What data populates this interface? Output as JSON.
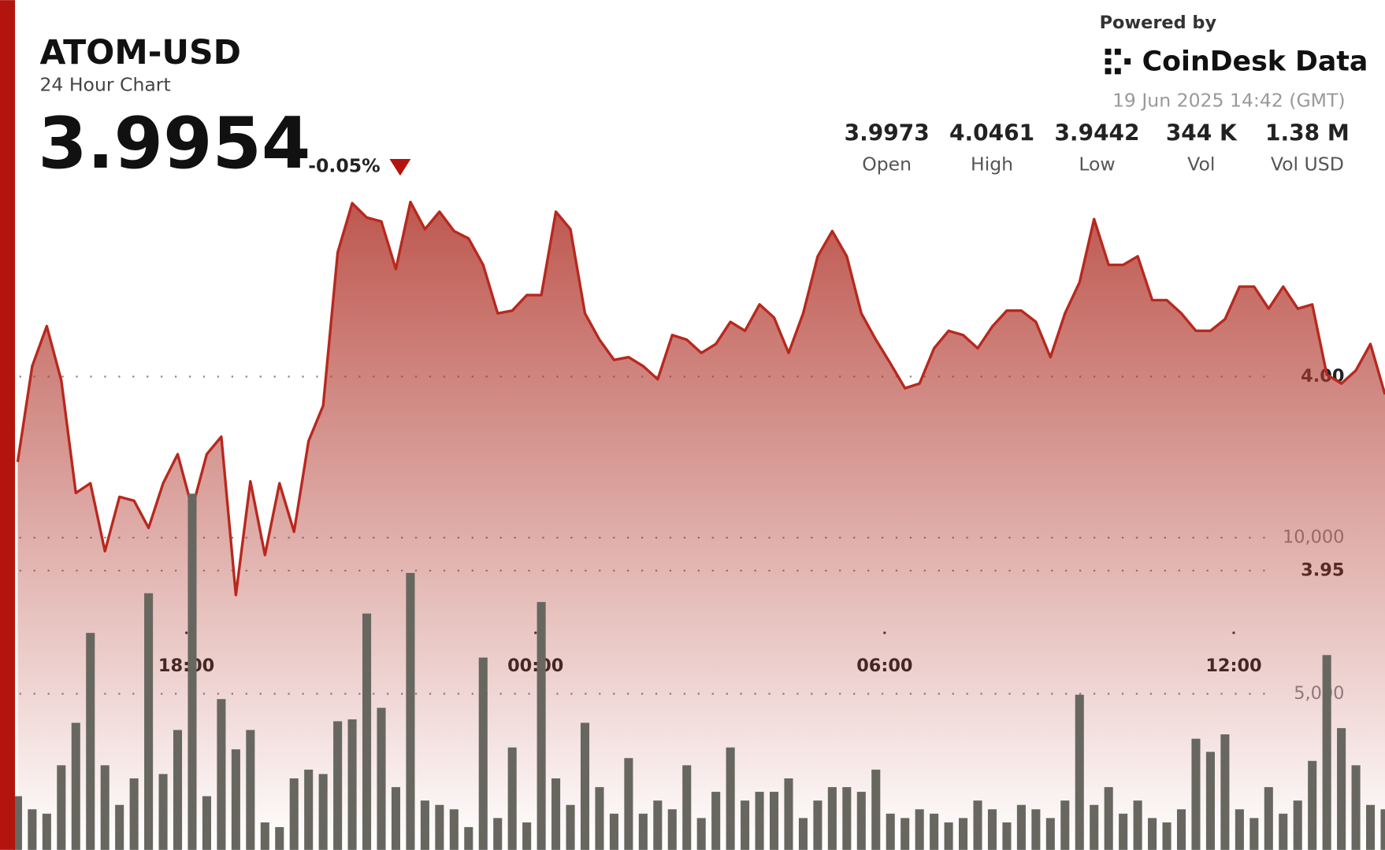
{
  "header": {
    "symbol": "ATOM-USD",
    "subtitle": "24 Hour Chart",
    "price": "3.9954",
    "change": "-0.05%",
    "powered_by": "Powered by",
    "brand": "CoinDesk Data",
    "timestamp": "19 Jun 2025 14:42 (GMT)",
    "stats": [
      {
        "value": "3.9973",
        "label": "Open"
      },
      {
        "value": "4.0461",
        "label": "High"
      },
      {
        "value": "3.9442",
        "label": "Low"
      },
      {
        "value": "344 K",
        "label": "Vol"
      },
      {
        "value": "1.38 M",
        "label": "Vol USD"
      }
    ]
  },
  "chart_data": {
    "type": "area",
    "x": [
      15.1,
      15.35,
      15.6,
      15.85,
      16.1,
      16.35,
      16.6,
      16.85,
      17.1,
      17.35,
      17.6,
      17.85,
      18.1,
      18.35,
      18.6,
      18.85,
      19.1,
      19.35,
      19.6,
      19.85,
      20.1,
      20.35,
      20.6,
      20.85,
      21.1,
      21.35,
      21.6,
      21.85,
      22.1,
      22.35,
      22.6,
      22.85,
      23.1,
      23.35,
      23.6,
      23.85,
      24.1,
      24.35,
      24.6,
      24.85,
      25.1,
      25.35,
      25.6,
      25.85,
      26.1,
      26.35,
      26.6,
      26.85,
      27.1,
      27.35,
      27.6,
      27.85,
      28.1,
      28.35,
      28.6,
      28.85,
      29.1,
      29.35,
      29.6,
      29.85,
      30.1,
      30.35,
      30.6,
      30.85,
      31.1,
      31.35,
      31.6,
      31.85,
      32.1,
      32.35,
      32.6,
      32.85,
      33.1,
      33.35,
      33.6,
      33.85,
      34.1,
      34.35,
      34.6,
      34.85,
      35.1,
      35.35,
      35.6,
      35.85,
      36.1,
      36.35,
      36.6,
      36.85,
      37.1,
      37.35,
      37.6,
      37.85,
      38.1,
      38.35,
      38.6
    ],
    "series": [
      {
        "color": "#b8281e",
        "values": [
          3.978,
          4.0027,
          4.013,
          3.999,
          3.97,
          3.9725,
          3.955,
          3.969,
          3.968,
          3.961,
          3.9725,
          3.98,
          3.966,
          3.98,
          3.9845,
          3.9437,
          3.973,
          3.954,
          3.9725,
          3.96,
          3.9834,
          3.9925,
          4.032,
          4.0447,
          4.041,
          4.04,
          4.0277,
          4.045,
          4.038,
          4.0425,
          4.0375,
          4.0356,
          4.0288,
          4.0163,
          4.017,
          4.021,
          4.021,
          4.0425,
          4.038,
          4.0163,
          4.0095,
          4.0043,
          4.005,
          4.0027,
          3.9993,
          4.0107,
          4.0095,
          4.0061,
          4.0084,
          4.0141,
          4.0118,
          4.0186,
          4.0152,
          4.0061,
          4.0163,
          4.031,
          4.0375,
          4.031,
          4.0163,
          4.0095,
          4.0034,
          3.997,
          3.9982,
          4.0073,
          4.0118,
          4.0107,
          4.0073,
          4.0129,
          4.017,
          4.017,
          4.0141,
          4.005,
          4.0163,
          4.0243,
          4.0406,
          4.0288,
          4.0288,
          4.031,
          4.0197,
          4.0197,
          4.0163,
          4.0118,
          4.0118,
          4.0148,
          4.0232,
          4.0232,
          4.0175,
          4.0232,
          4.0175,
          4.0186,
          4.0005,
          3.9982,
          4.0016,
          4.0084,
          3.9954
        ]
      },
      {
        "type": "bar",
        "axis": "y2",
        "color": "#67675f",
        "values": [
          1720,
          1300,
          1160,
          2710,
          4070,
          6950,
          2710,
          1440,
          2290,
          8220,
          2430,
          3840,
          11410,
          1720,
          4830,
          3220,
          3840,
          880,
          730,
          2290,
          2570,
          2430,
          4120,
          4180,
          7570,
          4550,
          2010,
          8870,
          1580,
          1440,
          1300,
          730,
          6160,
          1020,
          3280,
          880,
          7940,
          2290,
          1440,
          4070,
          2010,
          1160,
          2940,
          1160,
          1580,
          1300,
          2710,
          1020,
          1860,
          3280,
          1580,
          1860,
          1860,
          2290,
          1020,
          1580,
          2010,
          2010,
          1860,
          2570,
          1160,
          1020,
          1300,
          1160,
          880,
          1020,
          1580,
          1300,
          880,
          1440,
          1300,
          1020,
          1580,
          4970,
          1440,
          2010,
          1160,
          1580,
          1020,
          880,
          1300,
          3560,
          3140,
          3700,
          1300,
          1020,
          2010,
          1160,
          1580,
          2850,
          6240,
          3900,
          2710,
          1440,
          1300
        ]
      }
    ],
    "xlim": [
      15.1,
      38.6
    ],
    "xticks": [
      {
        "value": 18,
        "label": "18:00"
      },
      {
        "value": 24,
        "label": "00:00"
      },
      {
        "value": 30,
        "label": "06:00"
      },
      {
        "value": 36,
        "label": "12:00"
      }
    ],
    "ylim": [
      3.878,
      4.047
    ],
    "yticks": [
      3.95,
      {
        "value": 4,
        "label": "4.00"
      }
    ],
    "y2lim": [
      0,
      21000
    ],
    "y2ticks": [
      {
        "value": 5000,
        "label": "5,000"
      },
      {
        "value": 10000,
        "label": "10,000"
      }
    ],
    "grid": true
  }
}
